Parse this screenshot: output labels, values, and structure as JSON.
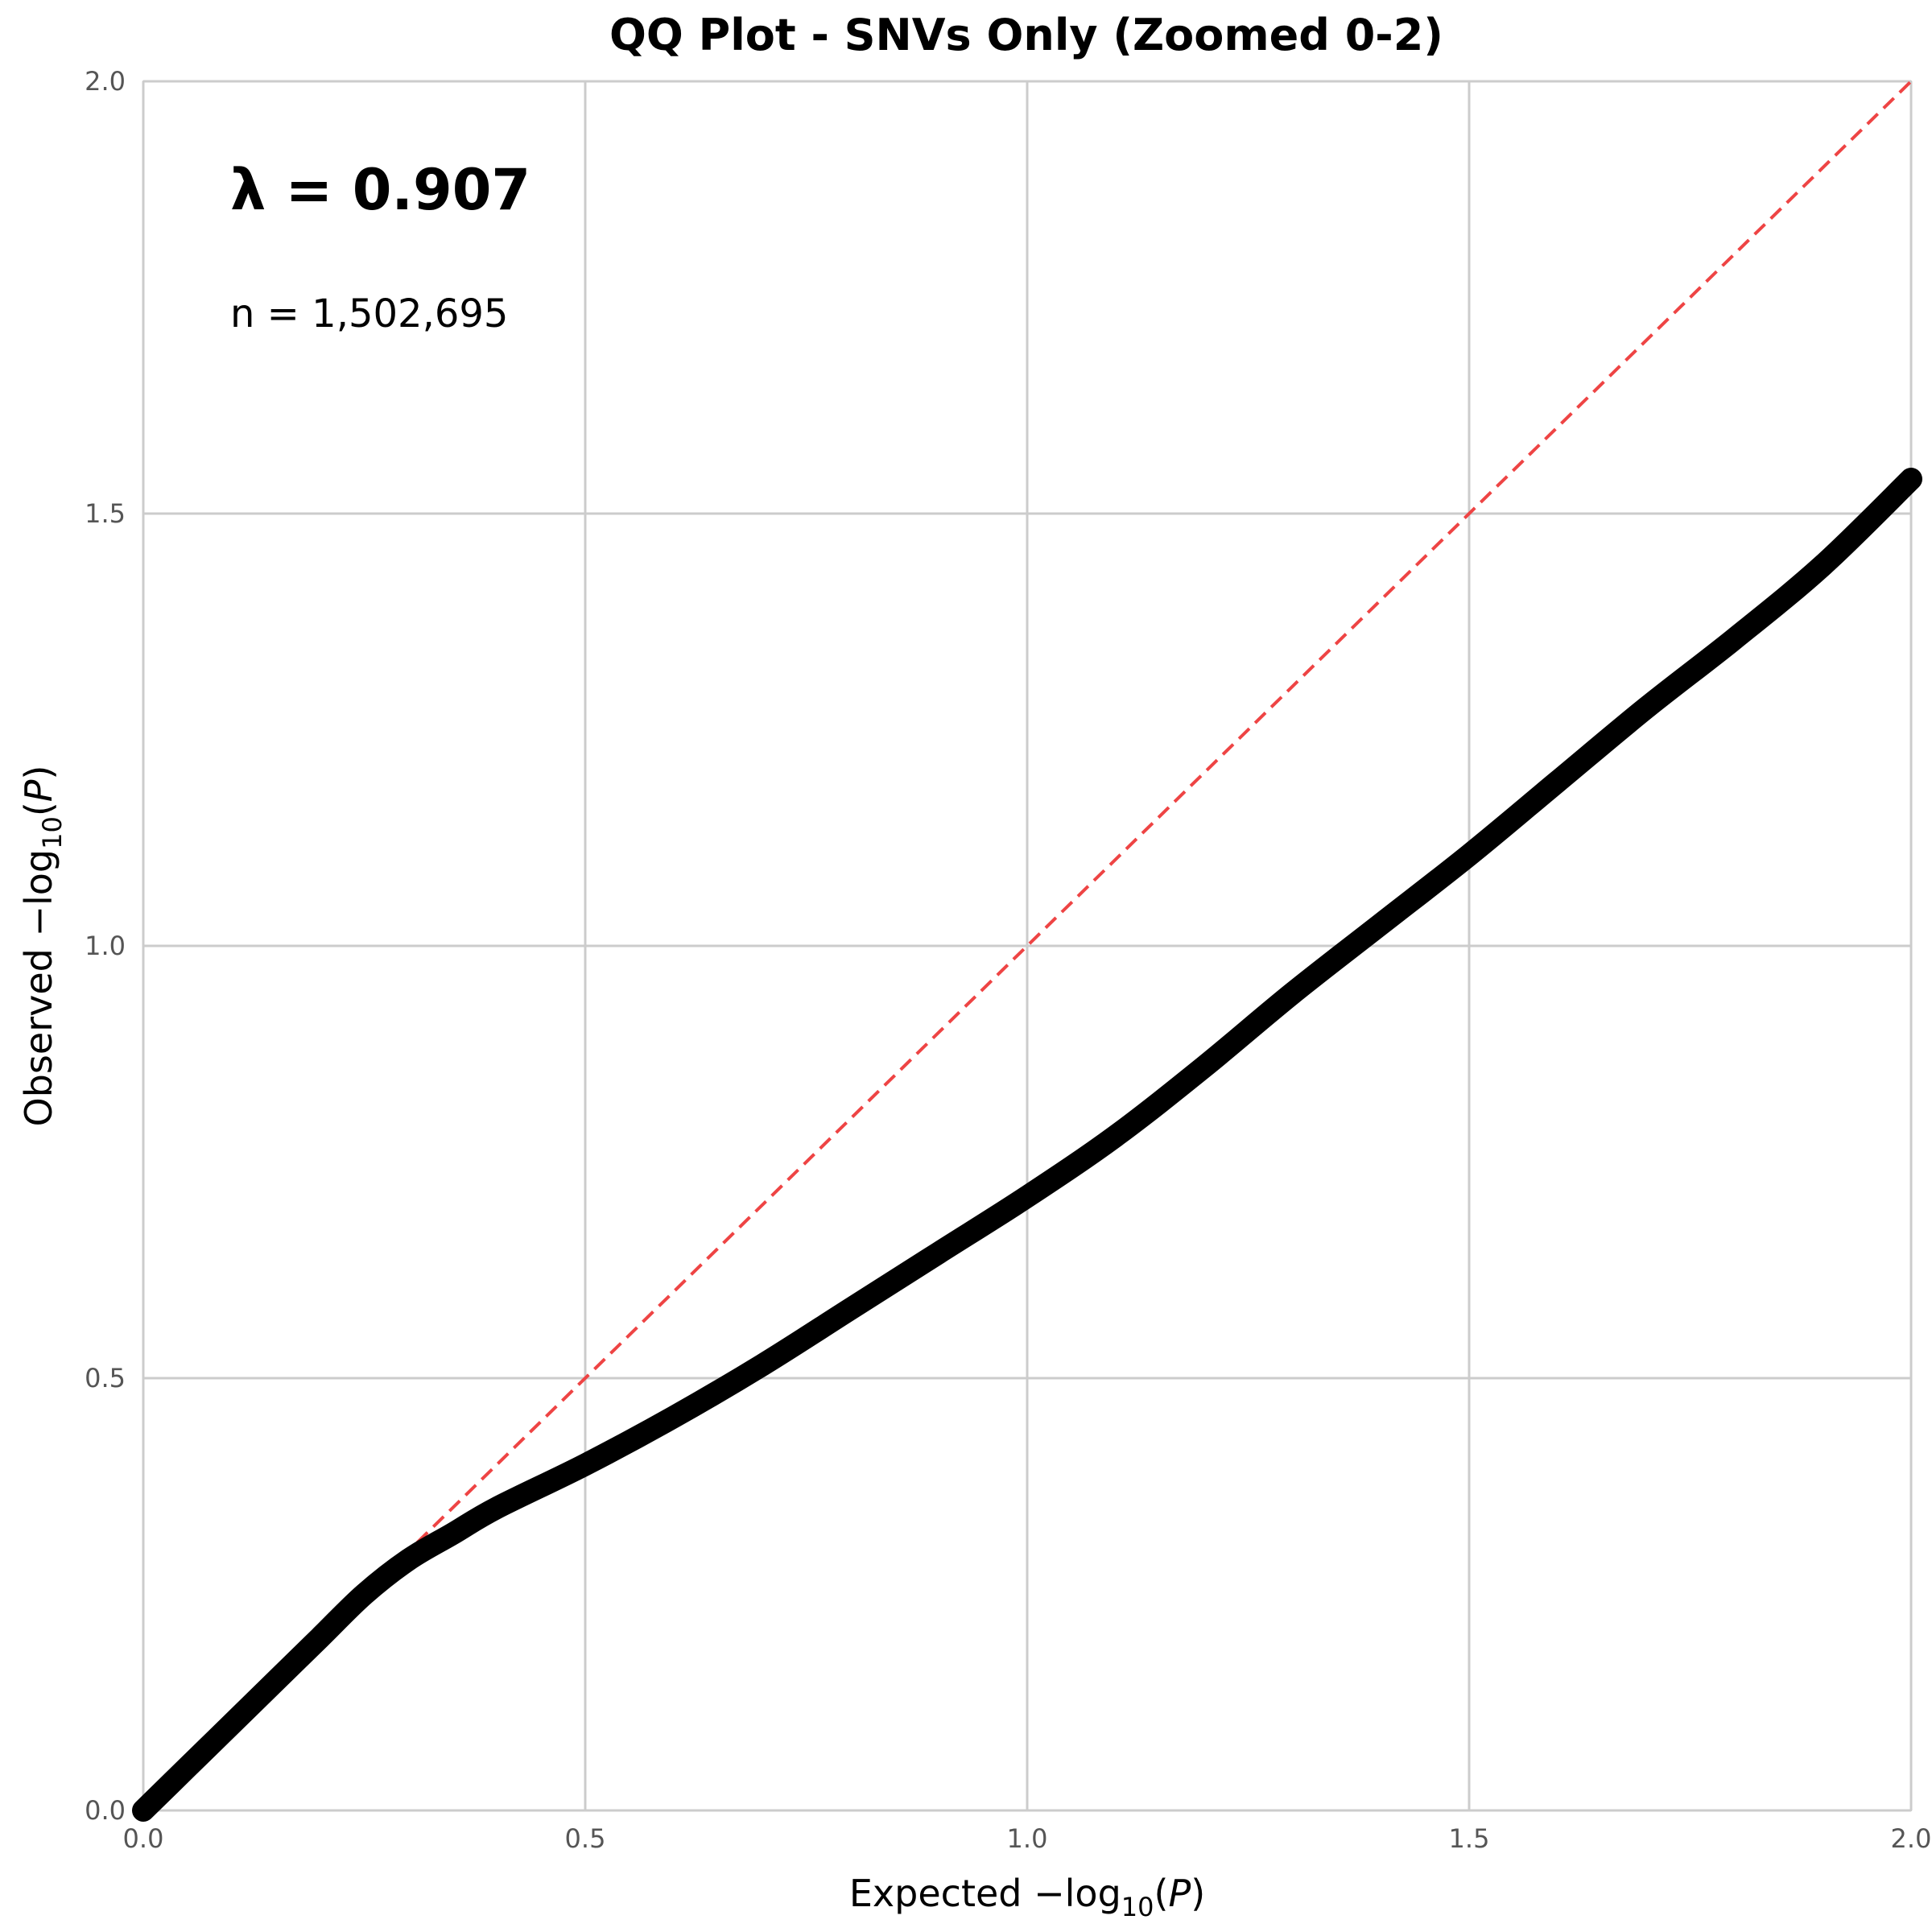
{
  "chart_data": {
    "type": "scatter",
    "title": "QQ Plot - SNVs Only (Zoomed 0-2)",
    "xlabel": {
      "prefix": "Expected −log",
      "sub": "10",
      "open": "(",
      "var": "P",
      "close": ")"
    },
    "ylabel": {
      "prefix": "Observed −log",
      "sub": "10",
      "open": "(",
      "var": "P",
      "close": ")"
    },
    "xlim": [
      0,
      2
    ],
    "ylim": [
      0,
      2
    ],
    "x_ticks": [
      "0.0",
      "0.5",
      "1.0",
      "1.5",
      "2.0"
    ],
    "y_ticks": [
      "0.0",
      "0.5",
      "1.0",
      "1.5",
      "2.0"
    ],
    "grid": true,
    "annotations": {
      "lambda": "λ = 0.907",
      "n": "n = 1,502,695"
    },
    "reference_line": {
      "from": [
        0,
        0
      ],
      "to": [
        2,
        2
      ],
      "style": "dashed",
      "color": "#ee4444"
    },
    "series": [
      {
        "color": "#000000",
        "points": [
          [
            0.0,
            0.0
          ],
          [
            0.05,
            0.05
          ],
          [
            0.1,
            0.1
          ],
          [
            0.15,
            0.15
          ],
          [
            0.2,
            0.2
          ],
          [
            0.25,
            0.25
          ],
          [
            0.3,
            0.29
          ],
          [
            0.35,
            0.32
          ],
          [
            0.4,
            0.35
          ],
          [
            0.5,
            0.4
          ],
          [
            0.6,
            0.455
          ],
          [
            0.7,
            0.515
          ],
          [
            0.8,
            0.58
          ],
          [
            0.9,
            0.645
          ],
          [
            1.0,
            0.71
          ],
          [
            1.1,
            0.78
          ],
          [
            1.2,
            0.86
          ],
          [
            1.3,
            0.945
          ],
          [
            1.4,
            1.025
          ],
          [
            1.5,
            1.105
          ],
          [
            1.6,
            1.19
          ],
          [
            1.7,
            1.275
          ],
          [
            1.8,
            1.355
          ],
          [
            1.9,
            1.44
          ],
          [
            2.0,
            1.54
          ]
        ]
      }
    ]
  }
}
